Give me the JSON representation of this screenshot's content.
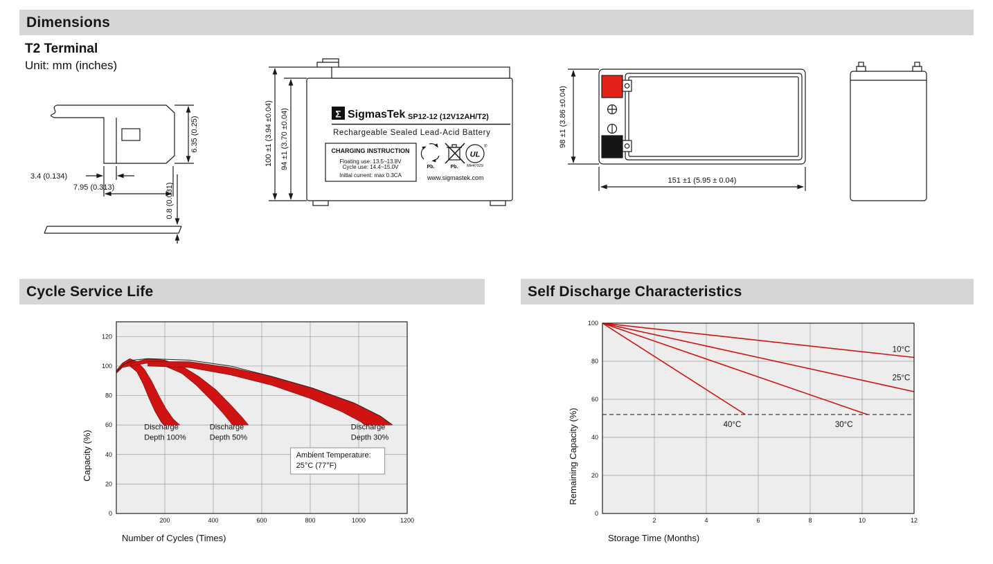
{
  "headers": {
    "dimensions": "Dimensions",
    "cycle_service_life": "Cycle Service Life",
    "self_discharge": "Self Discharge Characteristics"
  },
  "colors": {
    "terminal_red": "#e32219",
    "terminal_black": "#151515",
    "header_bg": "#d6d6d6"
  },
  "dimensions_section": {
    "terminal_type": "T2 Terminal",
    "unit": "Unit: mm (inches)",
    "terminal_drawing": {
      "dim_height": "6.35 (0.25)",
      "dim_width_inner": "3.4 (0.134)",
      "dim_width_outer": "7.95 (0.313)",
      "dim_thickness": "0.8 (0.031)"
    },
    "front_view": {
      "logo_glyph": "Σ",
      "brand": "SigmasTek",
      "model": "SP12-12 (12V12AH/T2)",
      "battery_type": "Rechargeable Sealed Lead-Acid Battery",
      "charging_box": {
        "title": "CHARGING INSTRUCTION",
        "line1": "Floating use: 13.5~13.8V",
        "line2": "Cycle use: 14.4~15.0V",
        "line3": "Initial current: max 0.3CA"
      },
      "pb_recycle": "Pb.",
      "pb_bin": "Pb.",
      "ul_mark": "UL",
      "ul_reg": "®",
      "ul_code": "MH47929",
      "website": "www.sigmastek.com",
      "dim_outer_height": "100 ±1 (3.94 ±0.04)",
      "dim_inner_height": "94 ±1 (3.70 ±0.04)"
    },
    "top_view": {
      "dim_depth": "98 ±1 (3.86 ±0.04)",
      "dim_length": "151 ±1 (5.95 ± 0.04)"
    }
  },
  "chart_data": [
    {
      "id": "cycle-service-life",
      "type": "area",
      "xlabel": "Number of Cycles (Times)",
      "ylabel": "Capacity (%)",
      "xlim": [
        0,
        1200
      ],
      "ylim": [
        0,
        130
      ],
      "xticks": [
        200,
        400,
        600,
        800,
        1000,
        1200
      ],
      "yticks": [
        0,
        20,
        40,
        60,
        80,
        100,
        120
      ],
      "grid": true,
      "band_color": "#cf1212",
      "bands": [
        {
          "name": "Discharge Depth 100%",
          "upper": [
            [
              0,
              97
            ],
            [
              25,
              102
            ],
            [
              55,
              105
            ],
            [
              85,
              103
            ],
            [
              115,
              98
            ],
            [
              145,
              90
            ],
            [
              175,
              80
            ],
            [
              205,
              71
            ],
            [
              235,
              64
            ],
            [
              262,
              60
            ]
          ],
          "lower": [
            [
              0,
              95
            ],
            [
              25,
              99
            ],
            [
              55,
              100
            ],
            [
              85,
              96
            ],
            [
              110,
              88
            ],
            [
              135,
              78
            ],
            [
              160,
              69
            ],
            [
              185,
              62
            ],
            [
              196,
              60
            ]
          ]
        },
        {
          "name": "Discharge Depth 50%",
          "upper": [
            [
              60,
              102
            ],
            [
              130,
              105
            ],
            [
              200,
              104
            ],
            [
              270,
              100
            ],
            [
              340,
              93
            ],
            [
              410,
              84
            ],
            [
              470,
              74
            ],
            [
              520,
              65
            ],
            [
              545,
              60
            ]
          ],
          "lower": [
            [
              60,
              100
            ],
            [
              130,
              102
            ],
            [
              200,
              100
            ],
            [
              270,
              95
            ],
            [
              330,
              87
            ],
            [
              390,
              77
            ],
            [
              440,
              68
            ],
            [
              470,
              62
            ],
            [
              478,
              60
            ]
          ]
        },
        {
          "name": "Discharge Depth 30%",
          "upper": [
            [
              130,
              103
            ],
            [
              300,
              103
            ],
            [
              470,
              99
            ],
            [
              640,
              93
            ],
            [
              810,
              85
            ],
            [
              980,
              75
            ],
            [
              1090,
              66
            ],
            [
              1135,
              60
            ]
          ],
          "lower": [
            [
              130,
              100
            ],
            [
              300,
              99
            ],
            [
              470,
              94
            ],
            [
              640,
              87
            ],
            [
              800,
              78
            ],
            [
              930,
              69
            ],
            [
              1010,
              62
            ],
            [
              1025,
              60
            ]
          ]
        }
      ],
      "envelope": [
        [
          0,
          96
        ],
        [
          30,
          101
        ],
        [
          70,
          104
        ],
        [
          130,
          105
        ],
        [
          300,
          104
        ],
        [
          470,
          100
        ],
        [
          640,
          93
        ],
        [
          810,
          85
        ],
        [
          980,
          75
        ],
        [
          1090,
          66
        ],
        [
          1140,
          60
        ]
      ],
      "annotations": [
        {
          "x": 115,
          "y": 57,
          "lines": [
            "Discharge",
            "Depth 100%"
          ]
        },
        {
          "x": 385,
          "y": 57,
          "lines": [
            "Discharge",
            "Depth 50%"
          ]
        },
        {
          "x": 968,
          "y": 57,
          "lines": [
            "Discharge",
            "Depth 30%"
          ]
        },
        {
          "x": 742,
          "y": 38,
          "lines": [
            "Ambient Temperature:",
            "25°C (77°F)"
          ],
          "boxed": true
        }
      ]
    },
    {
      "id": "self-discharge",
      "type": "line",
      "xlabel": "Storage Time (Months)",
      "ylabel": "Remaining Capacity (%)",
      "xlim": [
        0,
        12
      ],
      "ylim": [
        0,
        100
      ],
      "xticks": [
        2,
        4,
        6,
        8,
        10,
        12
      ],
      "yticks": [
        0,
        20,
        40,
        60,
        80,
        100
      ],
      "grid": true,
      "line_color": "#cf1212",
      "series": [
        {
          "name": "10°C",
          "points": [
            [
              0,
              100
            ],
            [
              12,
              82
            ]
          ],
          "label_pos": [
            11.85,
            85
          ],
          "label_anchor": "end"
        },
        {
          "name": "25°C",
          "points": [
            [
              0,
              100
            ],
            [
              12,
              64
            ]
          ],
          "label_pos": [
            11.85,
            70
          ],
          "label_anchor": "end"
        },
        {
          "name": "30°C",
          "points": [
            [
              0,
              100
            ],
            [
              10.2,
              52
            ]
          ],
          "label_pos": [
            9.3,
            45.5
          ],
          "label_anchor": "middle"
        },
        {
          "name": "40°C",
          "points": [
            [
              0,
              100
            ],
            [
              5.5,
              52
            ]
          ],
          "label_pos": [
            5.0,
            45.5
          ],
          "label_anchor": "middle"
        }
      ],
      "dashed_y": 52
    }
  ]
}
